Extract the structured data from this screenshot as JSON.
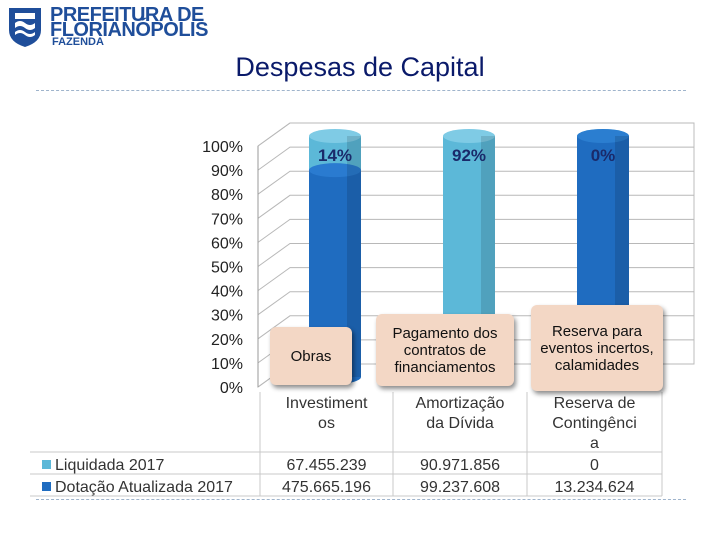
{
  "header": {
    "logo_line1": "PREFEITURA DE",
    "logo_line2": "FLORIANÓPOLIS",
    "logo_line3": "FAZENDA",
    "title": "Despesas de Capital"
  },
  "colors": {
    "dotacao": "#1f6cc0",
    "liquidada": "#5cb8d8",
    "callout": "#f3d7c5",
    "title": "#0a1a6a"
  },
  "chart_data": {
    "type": "bar",
    "stacked": "percent",
    "three_d": true,
    "categories": [
      "Investimentos",
      "Amortização da Dívida",
      "Reserva de Contingência"
    ],
    "category_label_lines": [
      [
        "Investiment",
        "os"
      ],
      [
        "Amortização",
        "da Dívida"
      ],
      [
        "Reserva de",
        "Contingênci",
        "a"
      ]
    ],
    "series": [
      {
        "name": "Liquidada 2017",
        "values": [
          "67.455.239",
          "90.971.856",
          "0"
        ]
      },
      {
        "name": "Dotação Atualizada 2017",
        "values": [
          "475.665.196",
          "99.237.608",
          "13.234.624"
        ]
      }
    ],
    "percent_labels": [
      "14%",
      "92%",
      "0%"
    ],
    "y_ticks": [
      "0%",
      "10%",
      "20%",
      "30%",
      "40%",
      "50%",
      "60%",
      "70%",
      "80%",
      "90%",
      "100%"
    ],
    "ylim": [
      0,
      100
    ],
    "data_table": true,
    "grid": true
  },
  "callouts": [
    {
      "text": "Obras"
    },
    {
      "text": "Pagamento dos contratos de financiamentos"
    },
    {
      "text": "Reserva para eventos incertos, calamidades"
    }
  ]
}
